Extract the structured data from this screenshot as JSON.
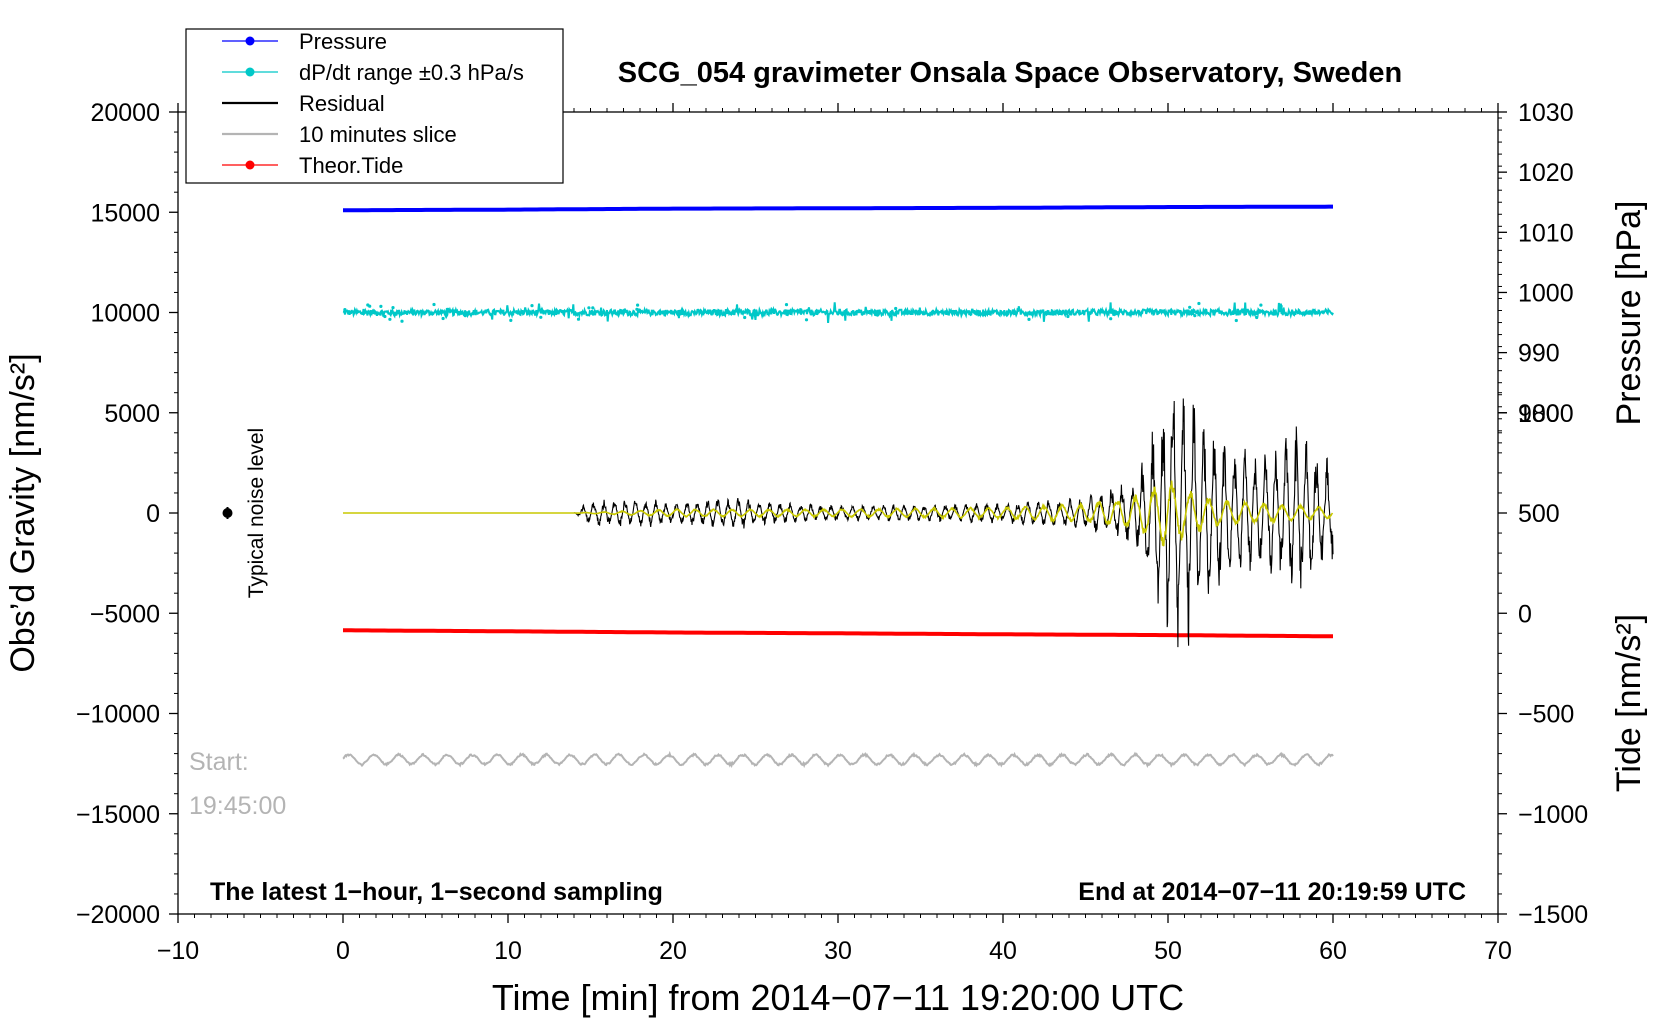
{
  "chart_data": {
    "type": "line",
    "title": "SCG_054 gravimeter Onsala Space Observatory, Sweden",
    "xlabel": "Time [min] from 2014−07−11 19:20:00 UTC",
    "ylabel_left": "Obs’d Gravity [nm/s²]",
    "ylabel_right_top": "Pressure [hPa]",
    "ylabel_right_bottom": "Tide [nm/s²]",
    "xlim": [
      -10,
      70
    ],
    "ylim": [
      -20000,
      20000
    ],
    "x_ticks": [
      {
        "value": -10,
        "label": "−10"
      },
      {
        "value": 0,
        "label": "0"
      },
      {
        "value": 10,
        "label": "10"
      },
      {
        "value": 20,
        "label": "20"
      },
      {
        "value": 30,
        "label": "30"
      },
      {
        "value": 40,
        "label": "40"
      },
      {
        "value": 50,
        "label": "50"
      },
      {
        "value": 60,
        "label": "60"
      },
      {
        "value": 70,
        "label": "70"
      }
    ],
    "y_ticks_left": [
      {
        "value": 20000,
        "label": "20000"
      },
      {
        "value": 15000,
        "label": "15000"
      },
      {
        "value": 10000,
        "label": "10000"
      },
      {
        "value": 5000,
        "label": "5000"
      },
      {
        "value": 0,
        "label": "0"
      },
      {
        "value": -5000,
        "label": "−5000"
      },
      {
        "value": -10000,
        "label": "−10000"
      },
      {
        "value": -15000,
        "label": "−15000"
      },
      {
        "value": -20000,
        "label": "−20000"
      }
    ],
    "y_ticks_pressure": [
      {
        "value": 1030,
        "label": "1030"
      },
      {
        "value": 1020,
        "label": "1020"
      },
      {
        "value": 1010,
        "label": "1010"
      },
      {
        "value": 1000,
        "label": "1000"
      },
      {
        "value": 990,
        "label": "990"
      },
      {
        "value": 980,
        "label": "980"
      }
    ],
    "pressure_axis": {
      "value_at_y20000": 1030,
      "hpa_per_gravity_unit": 0.003333
    },
    "y_ticks_tide": [
      {
        "value": 1000,
        "label": "1000"
      },
      {
        "value": 500,
        "label": "500"
      },
      {
        "value": 0,
        "label": "0"
      },
      {
        "value": -500,
        "label": "−500"
      },
      {
        "value": -1000,
        "label": "−1000"
      },
      {
        "value": -1500,
        "label": "−1500"
      }
    ],
    "tide_axis": {
      "value_at_y_minus20000": -1500,
      "tide_per_gravity_unit": 0.1
    },
    "legend": [
      {
        "label": "Pressure",
        "color": "#0000ff",
        "marker": "dot"
      },
      {
        "label": "dP/dt range ±0.3 hPa/s",
        "color": "#00c8c8",
        "marker": "dot"
      },
      {
        "label": "Residual",
        "color": "#000000",
        "marker": "none"
      },
      {
        "label": "10 minutes slice",
        "color": "#b4b4b4",
        "marker": "none"
      },
      {
        "label": "Theor.Tide",
        "color": "#ff0000",
        "marker": "dot"
      }
    ],
    "legend_position": "top-left",
    "series": [
      {
        "name": "Pressure",
        "color": "#0000ff",
        "x": [
          0,
          10,
          20,
          30,
          40,
          50,
          60
        ],
        "y": [
          15100,
          15130,
          15180,
          15200,
          15220,
          15260,
          15280
        ]
      },
      {
        "name": "dP/dt",
        "color": "#00c8c8",
        "x": [
          0,
          60
        ],
        "y": [
          10000,
          10000
        ],
        "spread": 150
      },
      {
        "name": "Theor.Tide",
        "color": "#ff0000",
        "x": [
          0,
          10,
          20,
          30,
          40,
          50,
          60
        ],
        "y": [
          -5850,
          -5900,
          -5960,
          -6000,
          -6050,
          -6090,
          -6150
        ]
      },
      {
        "name": "Residual",
        "color": "#000000",
        "x": [
          0,
          14,
          15,
          19,
          20,
          24,
          25,
          30,
          40,
          45,
          48,
          50,
          50.5,
          51,
          52,
          54,
          56,
          58,
          60
        ],
        "amplitude": [
          0,
          0,
          700,
          700,
          500,
          900,
          600,
          400,
          500,
          900,
          1800,
          6500,
          8000,
          7500,
          5000,
          3500,
          3000,
          4500,
          2500
        ]
      },
      {
        "name": "Filtered",
        "color": "#c8c800",
        "x": [
          0,
          14,
          20,
          30,
          40,
          45,
          48,
          50,
          51,
          53,
          56,
          60
        ],
        "amplitude": [
          0,
          0,
          200,
          200,
          300,
          500,
          900,
          1900,
          1300,
          700,
          500,
          300
        ]
      },
      {
        "name": "10 minutes slice",
        "color": "#b4b4b4",
        "x": [
          0,
          60
        ],
        "baseline": -12300,
        "amplitude": 300
      }
    ],
    "noise_level": {
      "x": -7,
      "y": 0,
      "label": "Typical noise level"
    },
    "start_label": {
      "line1": "Start:",
      "line2": "19:45:00"
    },
    "annotation_left": "The latest 1−hour, 1−second sampling",
    "annotation_right": "End at 2014−07−11 20:19:59 UTC"
  }
}
